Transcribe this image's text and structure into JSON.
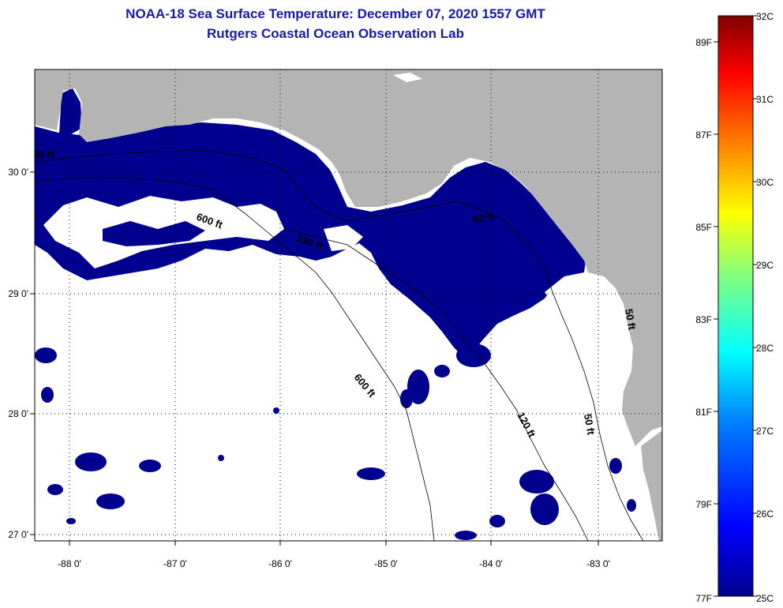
{
  "header": {
    "title_line1": "NOAA-18 Sea Surface Temperature:  December 07, 2020 1557 GMT",
    "title_line2": "Rutgers Coastal Ocean Observation Lab"
  },
  "map": {
    "lat_labels": [
      "30 0'",
      "29 0'",
      "28 0'",
      "27 0'"
    ],
    "lon_labels": [
      "-88 0'",
      "-87 0'",
      "-86 0'",
      "-85 0'",
      "-84 0'",
      "-83 0'"
    ],
    "contour_labels": [
      "60 ft",
      "600 ft",
      "120 ft",
      "50 ft",
      "600 ft",
      "120 ft",
      "50 ft",
      "50 ft"
    ],
    "colors": {
      "land": "#b4b4b4",
      "water": "#00008f",
      "cloud": "#ffffff"
    }
  },
  "colorbar": {
    "celsius_labels": [
      "32C",
      "31C",
      "30C",
      "29C",
      "28C",
      "27C",
      "26C",
      "25C"
    ],
    "fahrenheit_labels": [
      "89F",
      "87F",
      "85F",
      "83F",
      "81F",
      "79F",
      "77F"
    ],
    "gradient": [
      "#00008f",
      "#0000ff",
      "#0080ff",
      "#00ffff",
      "#80ff80",
      "#ffff00",
      "#ff8000",
      "#ff0000",
      "#800000"
    ]
  }
}
